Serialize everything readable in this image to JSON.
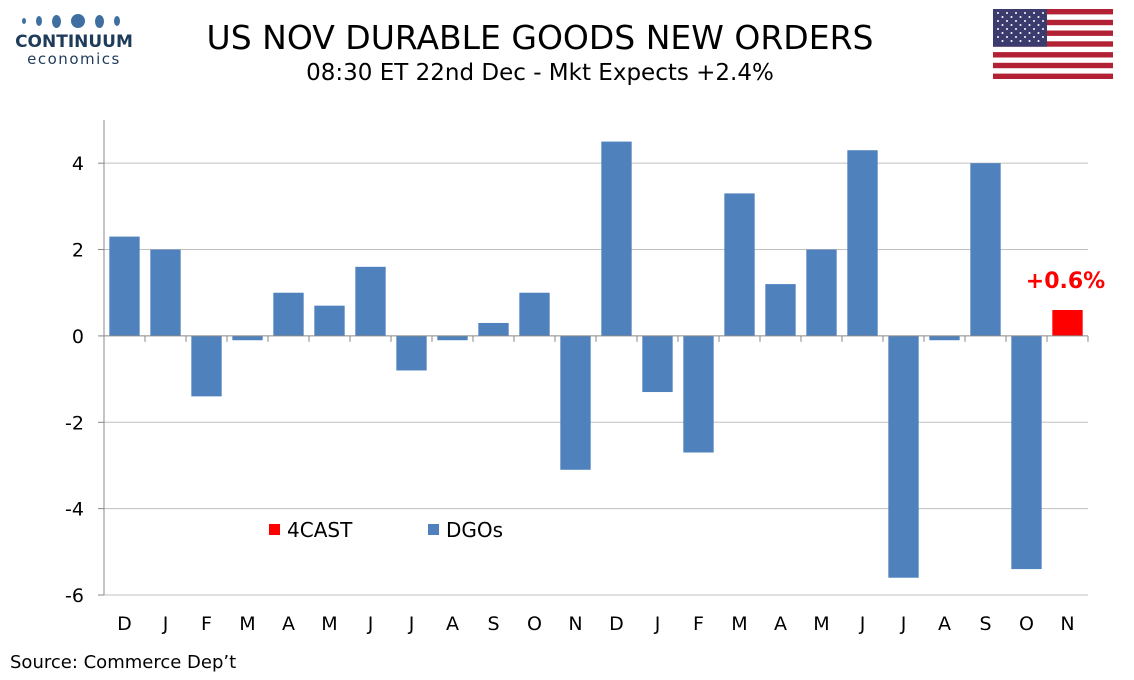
{
  "header": {
    "logo_name": "CONTINUUM",
    "logo_sub": "economics",
    "title": "US NOV DURABLE GOODS NEW ORDERS",
    "subtitle": "08:30 ET 22nd Dec - Mkt Expects +2.4%"
  },
  "footer": {
    "source": "Source: Commerce Dep’t"
  },
  "colors": {
    "dgos": "#4f81bd",
    "forecast": "#ff0000",
    "grid": "#c0c0c0"
  },
  "icons": {
    "flag": "us-flag-icon",
    "logo": "continuum-logo-icon"
  },
  "chart_data": {
    "type": "bar",
    "categories": [
      "D",
      "J",
      "F",
      "M",
      "A",
      "M",
      "J",
      "J",
      "A",
      "S",
      "O",
      "N",
      "D",
      "J",
      "F",
      "M",
      "A",
      "M",
      "J",
      "J",
      "A",
      "S",
      "O",
      "N"
    ],
    "series": [
      {
        "name": "DGOs",
        "values": [
          2.3,
          2.0,
          -1.4,
          -0.1,
          1.0,
          0.7,
          1.6,
          -0.8,
          -0.1,
          0.3,
          1.0,
          -3.1,
          4.5,
          -1.3,
          -2.7,
          3.3,
          1.2,
          2.0,
          4.3,
          -5.6,
          -0.1,
          4.0,
          -5.4,
          null
        ]
      },
      {
        "name": "4CAST",
        "values": [
          null,
          null,
          null,
          null,
          null,
          null,
          null,
          null,
          null,
          null,
          null,
          null,
          null,
          null,
          null,
          null,
          null,
          null,
          null,
          null,
          null,
          null,
          null,
          0.6
        ]
      }
    ],
    "data_label": {
      "text": "+0.6%",
      "category_index": 23
    },
    "ylim": [
      -6,
      5
    ],
    "yticks": [
      -6,
      -4,
      -2,
      0,
      2,
      4
    ],
    "ytick_labels": [
      "-6",
      "-4",
      "-2",
      "0",
      "2",
      "4"
    ],
    "grid": true,
    "legend": {
      "placement": "bottom-left",
      "order": [
        "4CAST",
        "DGOs"
      ]
    }
  }
}
